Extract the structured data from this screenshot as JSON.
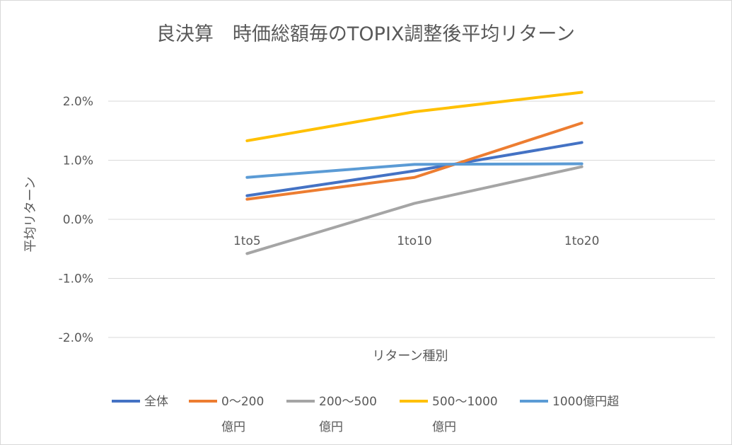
{
  "chart_data": {
    "type": "line",
    "title": "良決算　時価総額毎のTOPIX調整後平均リターン",
    "xlabel": "リターン種別",
    "ylabel": "平均リターン",
    "categories": [
      "1to5",
      "1to10",
      "1to20"
    ],
    "y_ticks": [
      "2.0%",
      "1.0%",
      "0.0%",
      "-1.0%",
      "-2.0%"
    ],
    "ylim": [
      -0.02,
      0.02
    ],
    "grid": true,
    "legend_position": "bottom",
    "series": [
      {
        "name": "全体",
        "color": "#4472c4",
        "values": [
          0.004,
          0.0082,
          0.013
        ]
      },
      {
        "name": "0〜200億円",
        "color": "#ed7d31",
        "values": [
          0.0034,
          0.0071,
          0.0163
        ]
      },
      {
        "name": "200〜500億円",
        "color": "#a5a5a5",
        "values": [
          -0.0058,
          0.0027,
          0.0089
        ]
      },
      {
        "name": "500〜1000億円",
        "color": "#ffc000",
        "values": [
          0.0133,
          0.0182,
          0.0215
        ]
      },
      {
        "name": "1000億円超",
        "color": "#5b9bd5",
        "values": [
          0.0071,
          0.0093,
          0.0094
        ]
      }
    ]
  }
}
